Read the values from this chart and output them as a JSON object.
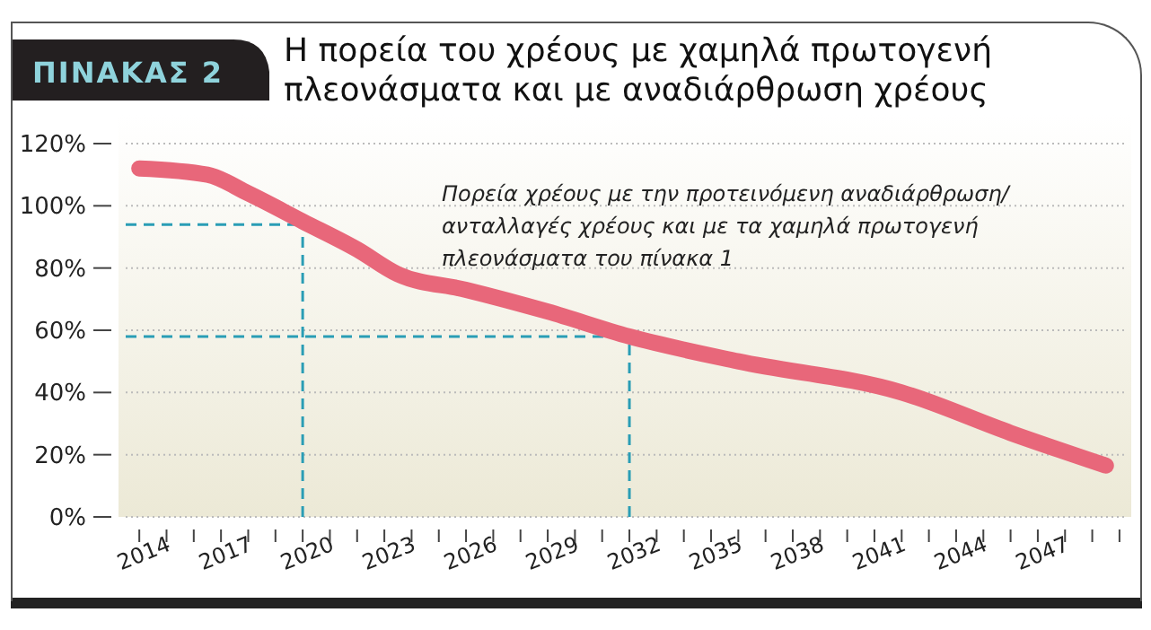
{
  "chart_data": {
    "type": "line",
    "title": "Η πορεία του χρέους με χαμηλά πρωτογενή\nπλεονάσματα και με αναδιάρθρωση χρέους",
    "subtitle": "ΠΙΝΑΚΑΣ 2",
    "annotations": [
      "Πορεία χρέους με την προτεινόμενη αναδιάρθρωση/\nανταλλαγές χρέους και με τα χαμηλά πρωτογενή\nπλεονάσματα του πίνακα 1"
    ],
    "series": [
      {
        "color": "#e8677a",
        "x": [
          2014,
          2016.5,
          2018,
          2020,
          2022,
          2023.5,
          2026,
          2029,
          2032,
          2036,
          2042,
          2046,
          2049.5
        ],
        "values": [
          112,
          110,
          104,
          95,
          86,
          78,
          73,
          66,
          58,
          50,
          40,
          27,
          16.5
        ]
      }
    ],
    "xlim": [
      2013.5,
      2050.3
    ],
    "xticks": [
      2014,
      {
        "value": 2015,
        "label": null
      },
      {
        "value": 2016,
        "label": null
      },
      2017,
      {
        "value": 2018,
        "label": null
      },
      {
        "value": 2019,
        "label": null
      },
      2020,
      {
        "value": 2021,
        "label": null
      },
      {
        "value": 2022,
        "label": null
      },
      2023,
      {
        "value": 2024,
        "label": null
      },
      {
        "value": 2025,
        "label": null
      },
      2026,
      {
        "value": 2027,
        "label": null
      },
      {
        "value": 2028,
        "label": null
      },
      2029,
      {
        "value": 2030,
        "label": null
      },
      {
        "value": 2031,
        "label": null
      },
      2032,
      {
        "value": 2033,
        "label": null
      },
      {
        "value": 2034,
        "label": null
      },
      2035,
      {
        "value": 2036,
        "label": null
      },
      {
        "value": 2037,
        "label": null
      },
      2038,
      {
        "value": 2039,
        "label": null
      },
      {
        "value": 2040,
        "label": null
      },
      2041,
      {
        "value": 2042,
        "label": null
      },
      {
        "value": 2043,
        "label": null
      },
      2044,
      {
        "value": 2045,
        "label": null
      },
      {
        "value": 2046,
        "label": null
      },
      2047,
      {
        "value": 2048,
        "label": null
      },
      {
        "value": 2049,
        "label": null
      },
      {
        "value": 2050,
        "label": null
      }
    ],
    "ylim": [
      0,
      120
    ],
    "yticks": [
      {
        "value": 0,
        "label": "0%"
      },
      {
        "value": 20,
        "label": "20%"
      },
      {
        "value": 40,
        "label": "40%"
      },
      {
        "value": 60,
        "label": "60%"
      },
      {
        "value": 80,
        "label": "80%"
      },
      {
        "value": 100,
        "label": "100%"
      },
      {
        "value": 120,
        "label": "120%"
      }
    ],
    "ref_lines": [
      {
        "axis": "y",
        "value": 94,
        "color": "#2a9db5",
        "line_style": "dashed"
      },
      {
        "axis": "x",
        "value": 2020,
        "color": "#2a9db5",
        "line_style": "dashed"
      },
      {
        "axis": "y",
        "value": 58,
        "color": "#2a9db5",
        "line_style": "dashed"
      },
      {
        "axis": "x",
        "value": 2032,
        "color": "#2a9db5",
        "line_style": "dashed"
      }
    ],
    "grid": "y",
    "line_style": "solid"
  }
}
